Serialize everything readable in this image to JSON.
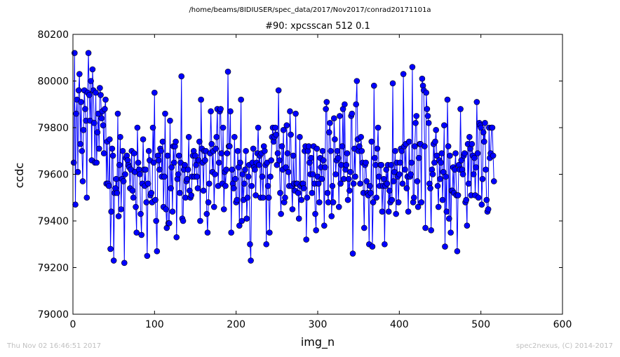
{
  "header": {
    "file_path": "/home/beams/8IDIUSER/spec_data/2017/Nov2017/conrad20171101a"
  },
  "footer": {
    "timestamp": "Thu Nov 02 16:46:51 2017",
    "credit": "spec2nexus, (C) 2014-2017"
  },
  "colors": {
    "series": "#0000ff",
    "marker_fill": "#0000ff",
    "marker_edge": "#000000",
    "axes": "#000000",
    "footer_text": "#c0c0c0"
  },
  "chart_data": {
    "type": "line",
    "title": "#90: xpcsscan 512 0.1",
    "xlabel": "img_n",
    "ylabel": "ccdc",
    "xlim": [
      0,
      600
    ],
    "ylim": [
      79000,
      80200
    ],
    "xticks": [
      0,
      100,
      200,
      300,
      400,
      500,
      600
    ],
    "yticks": [
      79000,
      79200,
      79400,
      79600,
      79800,
      80000,
      80200
    ],
    "grid": false,
    "markers": "circle",
    "series": [
      {
        "x_start": 1,
        "x_step": 1,
        "values": [
          79650,
          80120,
          79470,
          79860,
          79920,
          79610,
          79960,
          80030,
          79730,
          79910,
          79700,
          79570,
          79790,
          79960,
          79880,
          79830,
          79500,
          79950,
          80120,
          79940,
          79830,
          80000,
          79660,
          80050,
          79960,
          79820,
          79650,
          79950,
          79650,
          79780,
          79860,
          79710,
          79970,
          79940,
          79840,
          79870,
          79810,
          79690,
          79880,
          79920,
          79560,
          79740,
          79560,
          79550,
          79750,
          79280,
          79440,
          79710,
          79680,
          79230,
          79520,
          79540,
          79580,
          79520,
          79860,
          79420,
          79640,
          79760,
          79450,
          79580,
          79700,
          79570,
          79220,
          79600,
          79670,
          79680,
          79660,
          79640,
          79630,
          79540,
          79620,
          79700,
          79530,
          79500,
          79690,
          79610,
          79460,
          79350,
          79800,
          79650,
          79620,
          79600,
          79430,
          79340,
          79560,
          79750,
          79620,
          79550,
          79620,
          79480,
          79250,
          79560,
          79700,
          79660,
          79510,
          79520,
          79480,
          79800,
          79650,
          79950,
          79490,
          79400,
          79270,
          79680,
          79660,
          79620,
          79710,
          79700,
          79590,
          79740,
          79460,
          79590,
          79860,
          79450,
          79370,
          79680,
          79390,
          79390,
          79830,
          79540,
          79630,
          79440,
          79720,
          79650,
          79720,
          79740,
          79330,
          79580,
          79600,
          79680,
          79520,
          79650,
          80020,
          79410,
          79400,
          79620,
          79640,
          79500,
          79570,
          79580,
          79620,
          79760,
          79530,
          79500,
          79510,
          79590,
          79680,
          79700,
          79590,
          79680,
          79640,
          79590,
          79540,
          79660,
          79740,
          79400,
          79920,
          79710,
          79650,
          79530,
          79700,
          79660,
          79700,
          79430,
          79350,
          79480,
          79560,
          79690,
          79870,
          79730,
          79610,
          79700,
          79460,
          79600,
          79710,
          79760,
          79880,
          79550,
          79650,
          79870,
          79880,
          79690,
          79560,
          79800,
          79450,
          79610,
          79550,
          79620,
          79690,
          80040,
          79720,
          79720,
          79870,
          79350,
          79620,
          79560,
          79540,
          79760,
          79580,
          79480,
          79490,
          79700,
          79630,
          79380,
          79650,
          79920,
          79400,
          79600,
          79490,
          79560,
          79620,
          79700,
          79410,
          79500,
          79590,
          79640,
          79300,
          79230,
          79550,
          79650,
          79710,
          79630,
          79620,
          79510,
          79650,
          79690,
          79800,
          79640,
          79680,
          79500,
          79690,
          79590,
          79500,
          79720,
          79700,
          79640,
          79300,
          79650,
          79550,
          79500,
          79350,
          79590,
          79660,
          79760,
          79800,
          79740,
          79760,
          79800,
          79770,
          79640,
          79690,
          79960,
          79660,
          79520,
          79430,
          79720,
          79620,
          79790,
          79480,
          79500,
          79630,
          79810,
          79690,
          79610,
          79550,
          79870,
          79770,
          79550,
          79450,
          79680,
          79560,
          79530,
          79860,
          79560,
          79560,
          79520,
          79410,
          79760,
          79550,
          79490,
          79560,
          79560,
          79540,
          79700,
          79720,
          79320,
          79500,
          79700,
          79720,
          79650,
          79600,
          79670,
          79520,
          79600,
          79720,
          79560,
          79430,
          79360,
          79710,
          79590,
          79560,
          79480,
          79670,
          79630,
          79580,
          79700,
          79660,
          79380,
          79630,
          79880,
          79910,
          79520,
          79480,
          79780,
          79820,
          79700,
          79420,
          79550,
          79480,
          79840,
          79750,
          79600,
          79660,
          79700,
          79670,
          79460,
          79850,
          79560,
          79640,
          79720,
          79880,
          79580,
          79900,
          79620,
          79640,
          79690,
          79490,
          79580,
          79530,
          79610,
          79850,
          79860,
          79260,
          79560,
          79710,
          79590,
          79900,
          80000,
          79750,
          79700,
          79720,
          79560,
          79760,
          79700,
          79650,
          79520,
          79370,
          79640,
          79650,
          79570,
          79520,
          79510,
          79300,
          79550,
          79520,
          79740,
          79290,
          79480,
          79980,
          79670,
          79640,
          79500,
          79710,
          79800,
          79590,
          79550,
          79640,
          79640,
          79440,
          79550,
          79580,
          79300,
          79550,
          79620,
          79560,
          79640,
          79440,
          79530,
          79480,
          79640,
          79490,
          79990,
          79570,
          79610,
          79700,
          79430,
          79650,
          79590,
          79480,
          79600,
          79650,
          79710,
          79700,
          79560,
          80030,
          79720,
          79620,
          79730,
          79540,
          79590,
          79440,
          79740,
          79590,
          79600,
          79650,
          80060,
          79480,
          79500,
          79720,
          79820,
          79850,
          79570,
          79460,
          79670,
          79730,
          79730,
          79480,
          80010,
          79980,
          79960,
          79720,
          79370,
          79950,
          79880,
          79850,
          79820,
          79560,
          79540,
          79360,
          79620,
          79600,
          79730,
          79650,
          79740,
          79790,
          79680,
          79550,
          79460,
          79660,
          79580,
          79650,
          79690,
          79490,
          79610,
          79810,
          79290,
          79590,
          79440,
          79920,
          79720,
          79410,
          79680,
          79350,
          79530,
          79530,
          79630,
          79520,
          79620,
          79690,
          79510,
          79270,
          79510,
          79640,
          79620,
          79880,
          79660,
          79620,
          79600,
          79680,
          79690,
          79480,
          79490,
          79380,
          79730,
          79560,
          79760,
          79710,
          79510,
          79730,
          79680,
          79600,
          79670,
          79510,
          79630,
          79910,
          79690,
          79500,
          79820,
          79810,
          79800,
          79470,
          79580,
          79780,
          79740,
          79820,
          79620,
          79490,
          79440,
          79450,
          79800,
          79670,
          79690,
          79800,
          79800,
          79680,
          79570
        ]
      }
    ]
  }
}
